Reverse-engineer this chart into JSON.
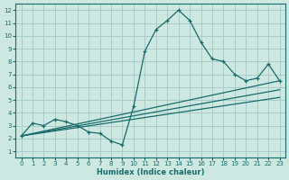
{
  "xlabel": "Humidex (Indice chaleur)",
  "bg_color": "#cce8e0",
  "grid_color": "#aacccc",
  "line_color": "#1a6b6b",
  "xlim": [
    -0.5,
    23.5
  ],
  "ylim": [
    0.5,
    12.5
  ],
  "xticks": [
    0,
    1,
    2,
    3,
    4,
    5,
    6,
    7,
    8,
    9,
    10,
    11,
    12,
    13,
    14,
    15,
    16,
    17,
    18,
    19,
    20,
    21,
    22,
    23
  ],
  "yticks": [
    1,
    2,
    3,
    4,
    5,
    6,
    7,
    8,
    9,
    10,
    11,
    12
  ],
  "main_line": {
    "x": [
      0,
      1,
      2,
      3,
      4,
      5,
      6,
      7,
      8,
      9,
      10,
      11,
      12,
      13,
      14,
      15,
      16,
      17,
      18,
      19,
      20,
      21,
      22,
      23
    ],
    "y": [
      2.2,
      3.2,
      3.0,
      3.5,
      3.3,
      3.0,
      2.5,
      2.4,
      1.8,
      1.5,
      4.5,
      8.8,
      10.5,
      11.2,
      12.0,
      11.2,
      9.5,
      8.2,
      8.0,
      7.0,
      6.5,
      6.7,
      7.8,
      6.5
    ]
  },
  "straight_lines": [
    {
      "x": [
        0,
        23
      ],
      "y": [
        2.2,
        6.5
      ]
    },
    {
      "x": [
        0,
        23
      ],
      "y": [
        2.2,
        5.8
      ]
    },
    {
      "x": [
        0,
        23
      ],
      "y": [
        2.2,
        5.2
      ]
    }
  ]
}
